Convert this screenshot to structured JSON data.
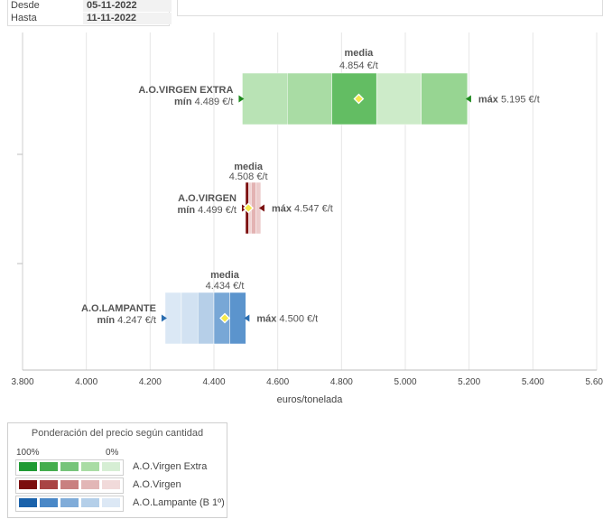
{
  "filters": {
    "desde_label": "Desde",
    "desde_value": "05-11-2022",
    "hasta_label": "Hasta",
    "hasta_value": "11-11-2022"
  },
  "chart_data": {
    "type": "range-bar",
    "xlabel": "euros/tonelada",
    "xlim": [
      3800,
      5600
    ],
    "xticks": [
      3800,
      4000,
      4200,
      4400,
      4600,
      4800,
      5000,
      5200,
      5400,
      5600
    ],
    "xtick_labels": [
      "3.800",
      "4.000",
      "4.200",
      "4.400",
      "4.600",
      "4.800",
      "5.000",
      "5.200",
      "5.400",
      "5.600"
    ],
    "grid": true,
    "series": [
      {
        "name": "A.O.VIRGEN EXTRA",
        "min": 4489,
        "min_label": "mín",
        "min_text": "4.489 €/t",
        "max": 5195,
        "max_label": "máx",
        "max_text": "5.195 €/t",
        "mean": 4854,
        "mean_label": "media",
        "mean_text": "4.854 €/t",
        "bands": [
          4489,
          4630,
          4770,
          4910,
          5050,
          5195
        ],
        "band_colors": [
          "#b9e3b5",
          "#a9dca4",
          "#63bd63",
          "#cdebc9",
          "#97d592"
        ],
        "marker_color": "#1e8a1e"
      },
      {
        "name": "A.O.VIRGEN",
        "min": 4499,
        "min_label": "mín",
        "min_text": "4.499 €/t",
        "max": 4547,
        "max_label": "máx",
        "max_text": "4.547 €/t",
        "mean": 4508,
        "mean_label": "media",
        "mean_text": "4.508 €/t",
        "bands": [
          4499,
          4509,
          4517,
          4532,
          4547
        ],
        "band_colors": [
          "#7c0e0e",
          "#f1d4d4",
          "#e3b3b3",
          "#eccccc"
        ],
        "marker_color": "#7a1010"
      },
      {
        "name": "A.O.LAMPANTE",
        "min": 4247,
        "min_label": "mín",
        "min_text": "4.247 €/t",
        "max": 4500,
        "max_label": "máx",
        "max_text": "4.500 €/t",
        "mean": 4434,
        "mean_label": "media",
        "mean_text": "4.434 €/t",
        "bands": [
          4247,
          4298,
          4350,
          4400,
          4450,
          4500
        ],
        "band_colors": [
          "#dbe8f5",
          "#d2e2f2",
          "#b6cfe8",
          "#78a7d6",
          "#5b94cd"
        ],
        "marker_color": "#2a6db0"
      }
    ]
  },
  "legend": {
    "title": "Ponderación del precio según cantidad",
    "left_label": "100%",
    "right_label": "0%",
    "rows": [
      {
        "name": "A.O.Virgen Extra",
        "colors": [
          "#1f9a33",
          "#45ad4e",
          "#76c47a",
          "#a9dca4",
          "#d6eed4"
        ]
      },
      {
        "name": "A.O.Virgen",
        "colors": [
          "#7c0e0e",
          "#a94444",
          "#c98080",
          "#e2b6b6",
          "#f1dada"
        ]
      },
      {
        "name": "A.O.Lampante (B 1º)",
        "colors": [
          "#1a62ab",
          "#4a88c7",
          "#80acd9",
          "#b4cfe9",
          "#dce8f5"
        ]
      }
    ]
  }
}
